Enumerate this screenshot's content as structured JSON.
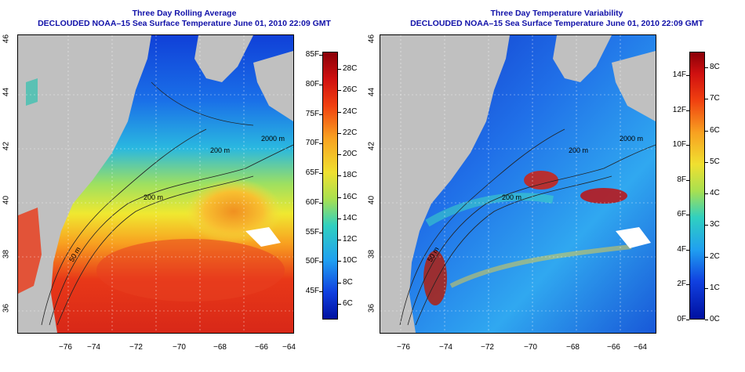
{
  "left_panel": {
    "title": "Three Day Rolling Average",
    "subtitle": "DECLOUDED NOAA–15 Sea Surface Temperature June 01, 2010 22:09 GMT",
    "colorbar_f": [
      "85F",
      "80F",
      "75F",
      "70F",
      "65F",
      "60F",
      "55F",
      "50F",
      "45F"
    ],
    "colorbar_c": [
      "28C",
      "26C",
      "24C",
      "22C",
      "20C",
      "18C",
      "16C",
      "14C",
      "12C",
      "10C",
      "8C",
      "6C"
    ],
    "contour_labels": [
      "2000 m",
      "200 m",
      "50 m",
      "200 m"
    ]
  },
  "right_panel": {
    "title": "Three Day Temperature Variability",
    "subtitle": "DECLOUDED NOAA–15 Sea Surface Temperature June 01, 2010 22:09 GMT",
    "colorbar_f": [
      "14F",
      "12F",
      "10F",
      "8F",
      "6F",
      "4F",
      "2F",
      "0F"
    ],
    "colorbar_c": [
      "8C",
      "7C",
      "6C",
      "5C",
      "4C",
      "3C",
      "2C",
      "1C",
      "0C"
    ],
    "contour_labels": [
      "2000 m",
      "200 m",
      "50 m",
      "200 m"
    ]
  },
  "axes": {
    "x_ticks": [
      "−76",
      "−74",
      "−72",
      "−70",
      "−68",
      "−66",
      "−64"
    ],
    "y_ticks": [
      "46",
      "44",
      "42",
      "40",
      "38",
      "36"
    ]
  },
  "colors": {
    "land": "#c0c0c0",
    "title": "#1010a8"
  }
}
